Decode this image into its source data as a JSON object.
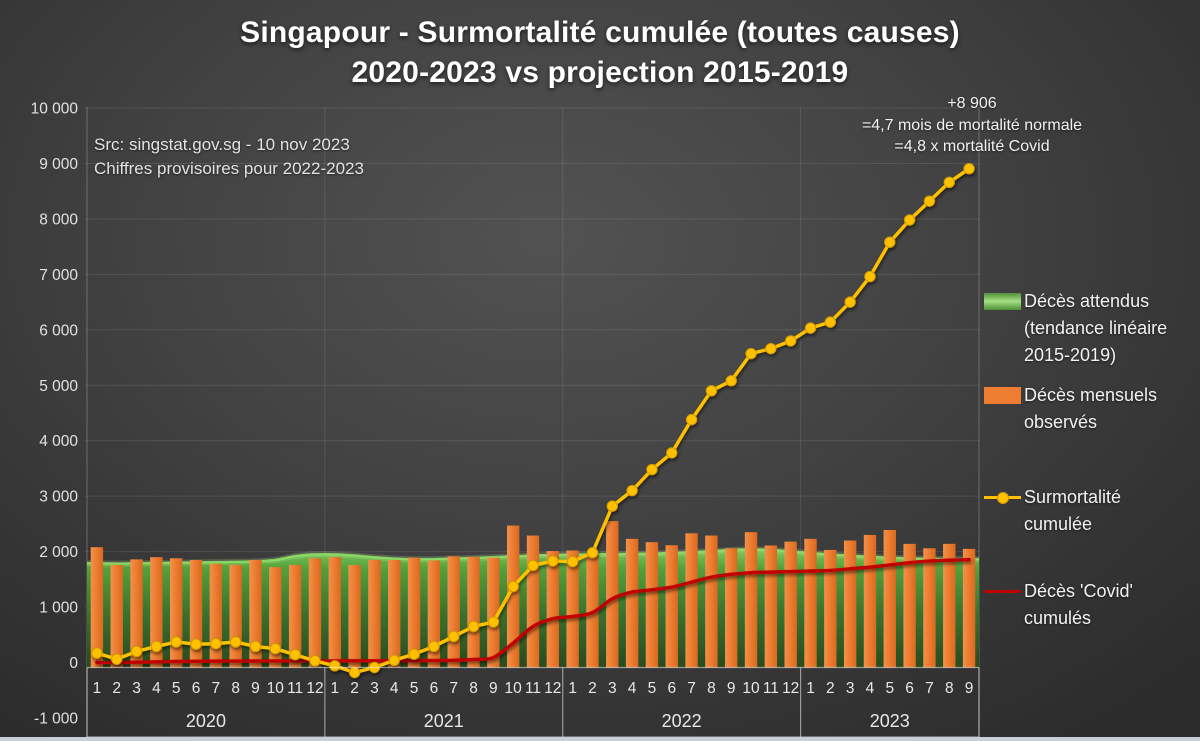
{
  "title": {
    "line1": "Singapour - Surmortalité cumulée (toutes causes)",
    "line2": "2020-2023 vs projection 2015-2019"
  },
  "source": {
    "line1": "Src: singstat.gov.sg - 10 nov 2023",
    "line2": "Chiffres provisoires pour 2022-2023"
  },
  "annotation": {
    "line1": "+8 906",
    "line2": "=4,7 mois de mortalité normale",
    "line3": "=4,8 x mortalité Covid"
  },
  "legend": [
    {
      "label": "Décès attendus (tendance linéaire 2015-2019)",
      "type": "area",
      "color": "#5ea445"
    },
    {
      "label": "Décès mensuels observés",
      "type": "bar",
      "color": "#ED7D31"
    },
    {
      "label": "Surmortalité cumulée",
      "type": "line-marker",
      "color": "#FFC000"
    },
    {
      "label": "Décès 'Covid' cumulés",
      "type": "line",
      "color": "#C00000"
    }
  ],
  "chart_data": {
    "type": "combo: area + bar + line + line",
    "title": "Singapour - Surmortalité cumulée (toutes causes) 2020-2023 vs projection 2015-2019",
    "grid": true,
    "legend_position": "right",
    "y_axis": {
      "min": -1000,
      "max": 10000,
      "step": 1000,
      "ticks": [
        {
          "v": 10000,
          "label": "10 000"
        },
        {
          "v": 9000,
          "label": "9 000"
        },
        {
          "v": 8000,
          "label": "8 000"
        },
        {
          "v": 7000,
          "label": "7 000"
        },
        {
          "v": 6000,
          "label": "6 000"
        },
        {
          "v": 5000,
          "label": "5 000"
        },
        {
          "v": 4000,
          "label": "4 000"
        },
        {
          "v": 3000,
          "label": "3 000"
        },
        {
          "v": 2000,
          "label": "2 000"
        },
        {
          "v": 1000,
          "label": "1 000"
        },
        {
          "v": 0,
          "label": "0"
        },
        {
          "v": -1000,
          "label": "-1 000"
        }
      ]
    },
    "x_axis": {
      "month_labels": [
        "1",
        "2",
        "3",
        "4",
        "5",
        "6",
        "7",
        "8",
        "9",
        "10",
        "11",
        "12",
        "1",
        "2",
        "3",
        "4",
        "5",
        "6",
        "7",
        "8",
        "9",
        "10",
        "11",
        "12",
        "1",
        "2",
        "3",
        "4",
        "5",
        "6",
        "7",
        "8",
        "9",
        "10",
        "11",
        "12",
        "1",
        "2",
        "3",
        "4",
        "5",
        "6",
        "7",
        "8",
        "9"
      ],
      "year_groups": [
        {
          "label": "2020",
          "count": 12
        },
        {
          "label": "2021",
          "count": 12
        },
        {
          "label": "2022",
          "count": 12
        },
        {
          "label": "2023",
          "count": 9
        }
      ]
    },
    "series": [
      {
        "name": "Décès attendus (tendance linéaire 2015-2019)",
        "type": "area",
        "color": "#4f9a38",
        "smooth": true,
        "values": [
          1790,
          1785,
          1790,
          1795,
          1800,
          1805,
          1810,
          1815,
          1825,
          1850,
          1920,
          1950,
          1950,
          1930,
          1900,
          1875,
          1865,
          1865,
          1875,
          1885,
          1900,
          1915,
          1930,
          1940,
          1945,
          1950,
          1955,
          1960,
          1965,
          1975,
          1990,
          2010,
          2030,
          2040,
          2030,
          2005,
          1975,
          1950,
          1925,
          1905,
          1890,
          1880,
          1870,
          1865,
          1865
        ]
      },
      {
        "name": "Décès mensuels observés",
        "type": "bar",
        "color": "#ED7D31",
        "values": [
          2080,
          1760,
          1860,
          1900,
          1880,
          1850,
          1780,
          1760,
          1850,
          1720,
          1760,
          1880,
          1900,
          1760,
          1850,
          1850,
          1890,
          1840,
          1915,
          1905,
          1890,
          2470,
          2290,
          2010,
          2020,
          1930,
          2550,
          2230,
          2170,
          2115,
          2330,
          2290,
          2060,
          2350,
          2110,
          2180,
          2230,
          2030,
          2200,
          2300,
          2390,
          2140,
          2060,
          2140,
          2050
        ]
      },
      {
        "name": "Surmortalité cumulée",
        "type": "line",
        "color": "#FFC000",
        "markers": true,
        "smooth": false,
        "values": [
          170,
          60,
          200,
          290,
          370,
          330,
          340,
          370,
          290,
          250,
          140,
          30,
          -60,
          -180,
          -90,
          40,
          150,
          290,
          470,
          650,
          730,
          1370,
          1750,
          1830,
          1820,
          1980,
          2820,
          3100,
          3480,
          3780,
          4380,
          4900,
          5080,
          5570,
          5660,
          5800,
          6030,
          6140,
          6500,
          6960,
          7580,
          7980,
          8320,
          8660,
          8906
        ]
      },
      {
        "name": "Décès 'Covid' cumulés",
        "type": "line",
        "color": "#C00000",
        "markers": false,
        "smooth": true,
        "values": [
          0,
          0,
          5,
          12,
          18,
          22,
          25,
          26,
          27,
          28,
          29,
          29,
          29,
          30,
          30,
          31,
          33,
          36,
          40,
          55,
          90,
          350,
          650,
          790,
          830,
          900,
          1150,
          1270,
          1310,
          1360,
          1450,
          1540,
          1590,
          1620,
          1630,
          1640,
          1650,
          1660,
          1690,
          1720,
          1760,
          1800,
          1830,
          1845,
          1855
        ]
      }
    ],
    "final_value_annotation": "+8 906 =4,7 mois de mortalité normale =4,8 x mortalité Covid"
  }
}
